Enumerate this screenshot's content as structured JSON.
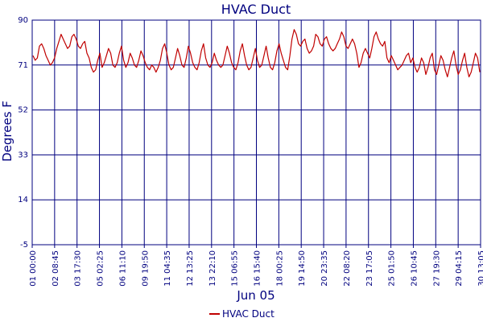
{
  "chart_data": {
    "type": "line",
    "title": "HVAC Duct",
    "ylabel": "Degrees F",
    "xlabel": "Jun 05",
    "ylim": [
      -5,
      90
    ],
    "yticks": [
      -5,
      14,
      33,
      52,
      71,
      90
    ],
    "xticks": [
      "01 00:00",
      "02 08:45",
      "03 17:30",
      "05 02:25",
      "06 11:10",
      "09 19:50",
      "11 04:35",
      "12 13:25",
      "13 22:10",
      "15 06:55",
      "16 15:40",
      "18 00:25",
      "19 14:50",
      "20 23:35",
      "22 08:20",
      "23 17:05",
      "25 01:50",
      "26 10:45",
      "27 19:30",
      "29 04:15",
      "30 13:05"
    ],
    "grid": true,
    "legend_position": "bottom-center",
    "series": [
      {
        "name": "HVAC Duct",
        "color": "#c00000",
        "values": [
          75,
          73,
          74,
          79,
          80,
          78,
          75,
          73,
          71,
          72,
          74,
          78,
          81,
          84,
          82,
          80,
          78,
          79,
          83,
          84,
          82,
          79,
          78,
          80,
          81,
          76,
          74,
          70,
          68,
          69,
          73,
          76,
          70,
          72,
          75,
          78,
          76,
          71,
          70,
          72,
          76,
          79,
          73,
          70,
          72,
          76,
          74,
          71,
          70,
          73,
          77,
          75,
          72,
          70,
          69,
          71,
          70,
          68,
          70,
          73,
          78,
          80,
          76,
          71,
          69,
          70,
          74,
          78,
          75,
          71,
          70,
          74,
          79,
          76,
          72,
          70,
          69,
          72,
          77,
          80,
          74,
          71,
          70,
          72,
          76,
          73,
          71,
          70,
          71,
          75,
          79,
          76,
          72,
          70,
          69,
          72,
          77,
          80,
          75,
          71,
          69,
          70,
          74,
          78,
          73,
          70,
          71,
          75,
          79,
          74,
          70,
          69,
          72,
          77,
          80,
          76,
          73,
          70,
          69,
          75,
          82,
          86,
          84,
          80,
          79,
          81,
          82,
          78,
          76,
          77,
          79,
          84,
          83,
          80,
          79,
          82,
          83,
          80,
          78,
          77,
          78,
          80,
          82,
          85,
          83,
          79,
          78,
          80,
          82,
          80,
          76,
          70,
          72,
          76,
          78,
          76,
          74,
          78,
          83,
          85,
          82,
          80,
          79,
          81,
          74,
          72,
          75,
          73,
          71,
          69,
          70,
          71,
          73,
          75,
          76,
          72,
          74,
          70,
          68,
          70,
          74,
          72,
          67,
          70,
          74,
          76,
          69,
          67,
          71,
          75,
          73,
          69,
          66,
          70,
          74,
          77,
          71,
          67,
          69,
          73,
          76,
          70,
          66,
          68,
          72,
          76,
          74,
          68
        ]
      }
    ]
  }
}
